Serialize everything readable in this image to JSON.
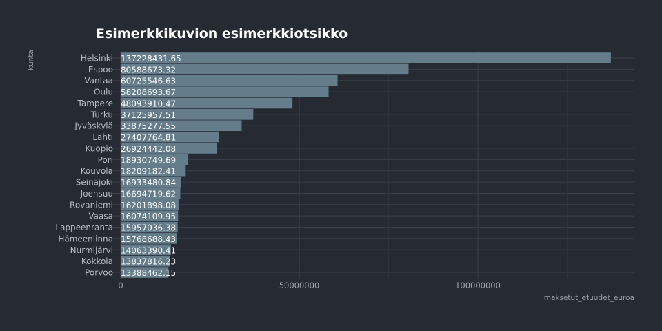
{
  "chart_data": {
    "type": "bar",
    "orientation": "horizontal",
    "title": "Esimerkkikuvion esimerkkiotsikko",
    "xlabel": "maksetut_etuudet_euroa",
    "ylabel": "kunta",
    "xlim": [
      0,
      140000000
    ],
    "xticks": [
      0,
      50000000,
      100000000
    ],
    "xtick_labels": [
      "0",
      "50000000",
      "100000000"
    ],
    "grid": true,
    "legend": "none",
    "bar_color": "#657d8b",
    "categories": [
      "Helsinki",
      "Espoo",
      "Vantaa",
      "Oulu",
      "Tampere",
      "Turku",
      "Jyväskylä",
      "Lahti",
      "Kuopio",
      "Pori",
      "Kouvola",
      "Seinäjoki",
      "Joensuu",
      "Rovaniemi",
      "Vaasa",
      "Lappeenranta",
      "Hämeenlinna",
      "Nurmijärvi",
      "Kokkola",
      "Porvoo"
    ],
    "values": [
      137228431.65,
      80588673.32,
      60725546.63,
      58208693.67,
      48093910.47,
      37125957.51,
      33875277.55,
      27407764.81,
      26924442.08,
      18930749.69,
      18209182.41,
      16933480.84,
      16694719.62,
      16201898.08,
      16074109.95,
      15957036.38,
      15768688.43,
      14063390.41,
      13837816.23,
      13388462.15
    ],
    "value_labels": [
      "137228431.65",
      "80588673.32",
      "60725546.63",
      "58208693.67",
      "48093910.47",
      "37125957.51",
      "33875277.55",
      "27407764.81",
      "26924442.08",
      "18930749.69",
      "18209182.41",
      "16933480.84",
      "16694719.62",
      "16201898.08",
      "16074109.95",
      "15957036.38",
      "15768688.43",
      "14063390.41",
      "13837816.23",
      "13388462.15"
    ]
  }
}
